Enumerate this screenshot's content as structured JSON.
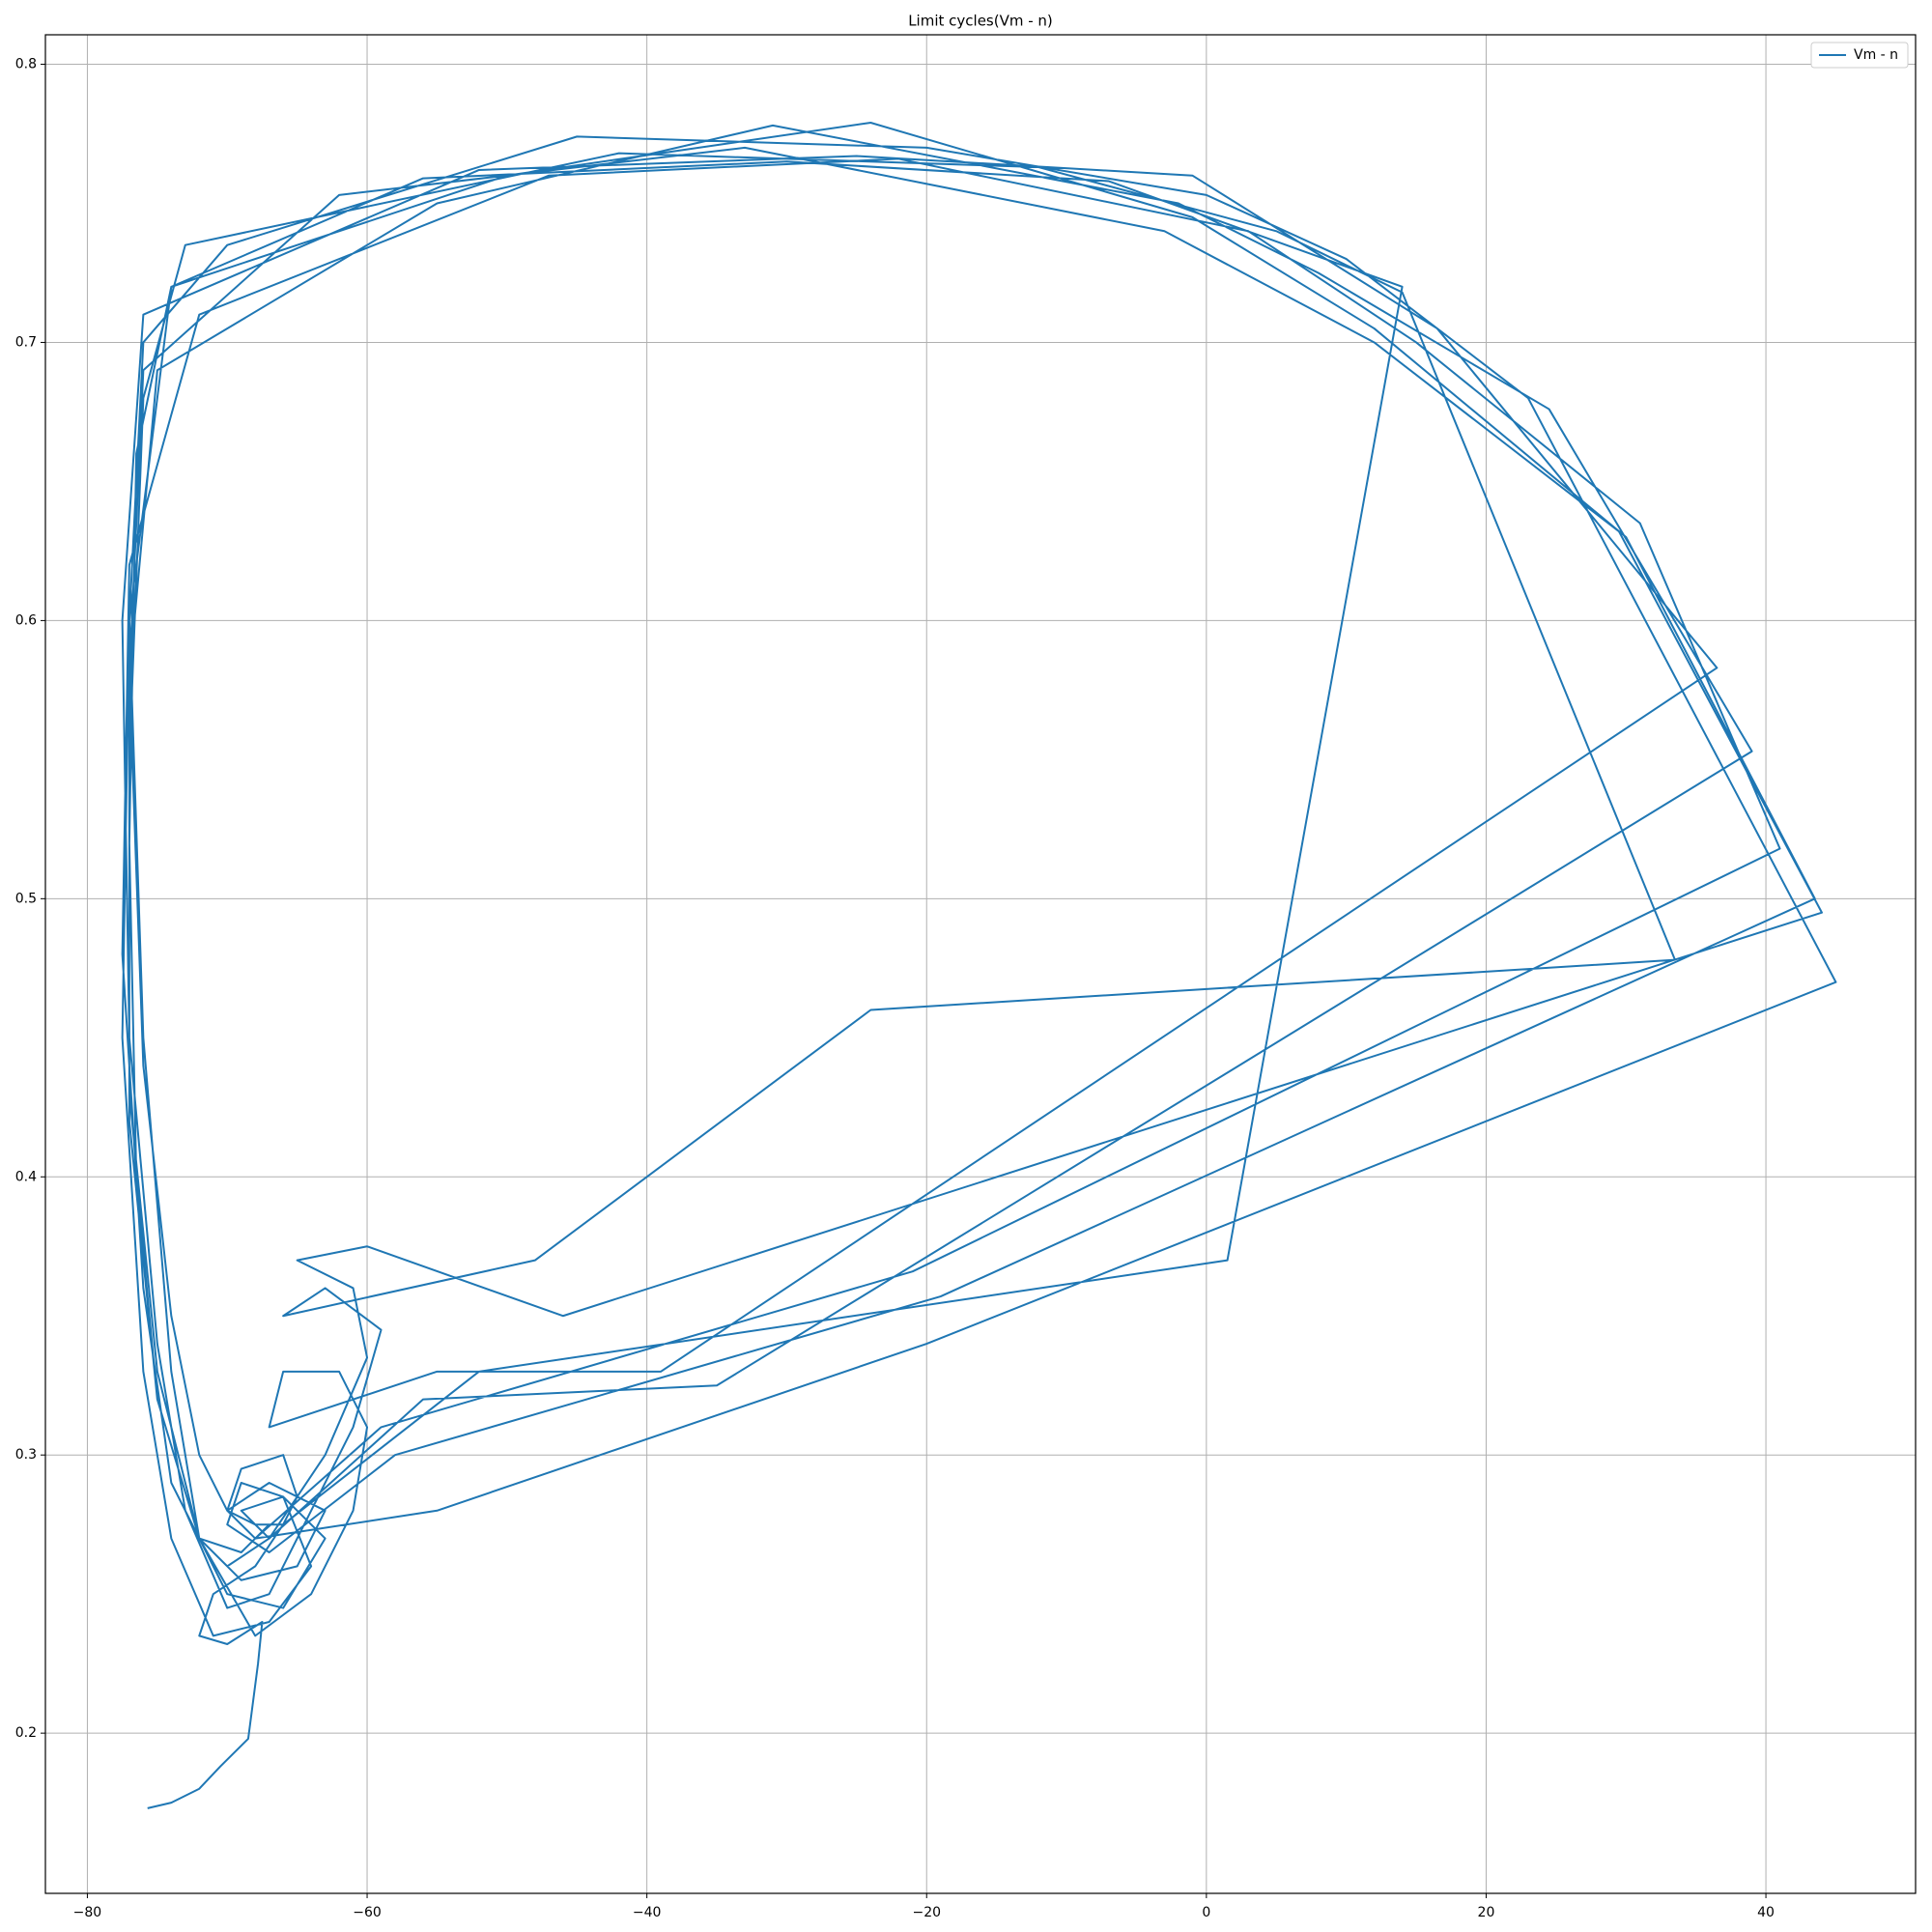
{
  "chart_data": {
    "type": "line",
    "title": "Limit cycles(Vm - n)",
    "x": [
      -75.7,
      -74,
      -72,
      -70.5,
      -68.5,
      -67.8,
      -67.5,
      -70,
      -72,
      -71,
      -68,
      -66,
      -65,
      -66,
      -69,
      -70,
      -68,
      -55,
      -20,
      45,
      23,
      10,
      0,
      -20,
      -45,
      -70,
      -76,
      -77,
      -77.5,
      -76,
      -74,
      -71,
      -67,
      -64,
      -66,
      -69,
      -70,
      -67,
      -58,
      -19,
      43.5,
      30,
      12,
      -1,
      -24,
      -50,
      -74,
      -76.5,
      -77,
      -76.5,
      -75,
      -72,
      -69,
      -65,
      -63,
      -67,
      -70,
      -68,
      -59,
      -21,
      41,
      31,
      15,
      3,
      -22,
      -47,
      -72,
      -77,
      -77.5,
      -76,
      -74,
      -70,
      -66,
      -63,
      -66,
      -69,
      -67,
      -56,
      -35,
      39,
      24.5,
      8,
      -2,
      -31,
      -55,
      -75,
      -77,
      -77,
      -75,
      -72,
      -68,
      -64,
      -61,
      -60,
      -62,
      -66,
      -67,
      -55,
      -39,
      36.5,
      16.5,
      -1,
      -25,
      -52,
      -76,
      -77.5,
      -77,
      -75,
      -73,
      -70,
      -67,
      -64,
      -61,
      -59,
      -63,
      -66,
      -48,
      -24,
      33.5,
      14,
      5,
      -12,
      -42,
      -73,
      -76,
      -77,
      -77,
      -75,
      -72,
      -70,
      -67,
      -63,
      -60,
      -61,
      -65,
      -60,
      -46,
      44,
      29.5,
      12,
      -3,
      -33,
      -62,
      -76,
      -77,
      -76,
      -74,
      -72,
      -70,
      -68,
      -66,
      -52,
      1.5,
      14,
      -7,
      -30,
      -56,
      -74,
      -77,
      -76,
      -74,
      -72,
      -69,
      -67
    ],
    "series": [
      {
        "name": "Vm - n",
        "color": "#1f77b4",
        "values": [
          0.173,
          0.175,
          0.18,
          0.188,
          0.198,
          0.225,
          0.24,
          0.232,
          0.235,
          0.25,
          0.26,
          0.275,
          0.285,
          0.3,
          0.295,
          0.28,
          0.27,
          0.28,
          0.34,
          0.47,
          0.68,
          0.73,
          0.753,
          0.77,
          0.774,
          0.735,
          0.7,
          0.6,
          0.45,
          0.33,
          0.27,
          0.235,
          0.24,
          0.26,
          0.285,
          0.29,
          0.275,
          0.265,
          0.3,
          0.357,
          0.5,
          0.63,
          0.705,
          0.745,
          0.779,
          0.76,
          0.72,
          0.66,
          0.52,
          0.4,
          0.32,
          0.27,
          0.255,
          0.26,
          0.28,
          0.29,
          0.28,
          0.27,
          0.31,
          0.366,
          0.518,
          0.635,
          0.7,
          0.74,
          0.766,
          0.76,
          0.71,
          0.62,
          0.48,
          0.36,
          0.29,
          0.25,
          0.245,
          0.27,
          0.285,
          0.28,
          0.27,
          0.32,
          0.325,
          0.553,
          0.676,
          0.725,
          0.75,
          0.778,
          0.75,
          0.69,
          0.58,
          0.43,
          0.33,
          0.27,
          0.235,
          0.25,
          0.28,
          0.31,
          0.33,
          0.33,
          0.31,
          0.33,
          0.33,
          0.583,
          0.705,
          0.76,
          0.767,
          0.762,
          0.71,
          0.6,
          0.45,
          0.34,
          0.28,
          0.245,
          0.25,
          0.28,
          0.31,
          0.345,
          0.36,
          0.35,
          0.37,
          0.46,
          0.478,
          0.718,
          0.74,
          0.763,
          0.768,
          0.735,
          0.68,
          0.55,
          0.42,
          0.32,
          0.27,
          0.26,
          0.27,
          0.3,
          0.335,
          0.36,
          0.37,
          0.375,
          0.35,
          0.495,
          0.632,
          0.7,
          0.74,
          0.77,
          0.753,
          0.69,
          0.58,
          0.44,
          0.35,
          0.3,
          0.28,
          0.275,
          0.275,
          0.33,
          0.37,
          0.72,
          0.758,
          0.765,
          0.759,
          0.72,
          0.6,
          0.45,
          0.33,
          0.27,
          0.265,
          0.275
        ]
      }
    ],
    "xlim": [
      -83.0,
      50.7
    ],
    "ylim": [
      0.1424,
      0.8106
    ],
    "xticks": [
      {
        "value": -80,
        "label": "−80"
      },
      {
        "value": -60,
        "label": "−60"
      },
      {
        "value": -40,
        "label": "−40"
      },
      {
        "value": -20,
        "label": "−20"
      },
      0,
      20,
      40
    ],
    "yticks": [
      0.2,
      0.3,
      0.4,
      0.5,
      0.6,
      0.7,
      0.8
    ],
    "grid": true,
    "legend": "upper right"
  }
}
